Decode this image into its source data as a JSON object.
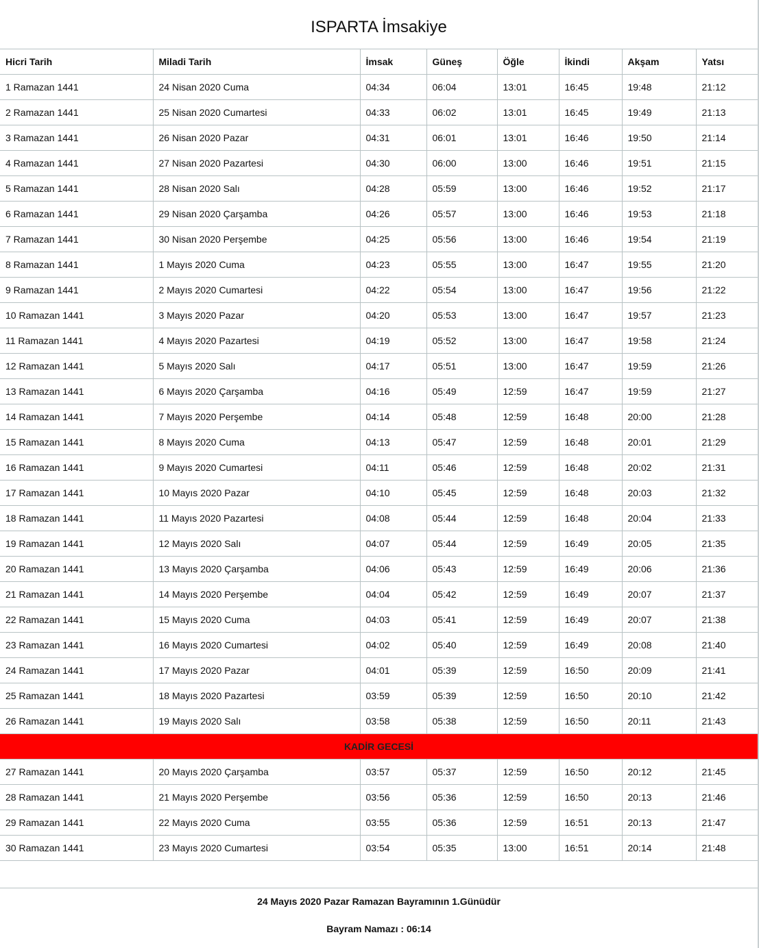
{
  "title": "ISPARTA İmsakiye",
  "headers": [
    "Hicri Tarih",
    "Miladi Tarih",
    "İmsak",
    "Güneş",
    "Öğle",
    "İkindi",
    "Akşam",
    "Yatsı"
  ],
  "rows_before": [
    [
      "1 Ramazan 1441",
      "24 Nisan 2020 Cuma",
      "04:34",
      "06:04",
      "13:01",
      "16:45",
      "19:48",
      "21:12"
    ],
    [
      "2 Ramazan 1441",
      "25 Nisan 2020 Cumartesi",
      "04:33",
      "06:02",
      "13:01",
      "16:45",
      "19:49",
      "21:13"
    ],
    [
      "3 Ramazan 1441",
      "26 Nisan 2020 Pazar",
      "04:31",
      "06:01",
      "13:01",
      "16:46",
      "19:50",
      "21:14"
    ],
    [
      "4 Ramazan 1441",
      "27 Nisan 2020 Pazartesi",
      "04:30",
      "06:00",
      "13:00",
      "16:46",
      "19:51",
      "21:15"
    ],
    [
      "5 Ramazan 1441",
      "28 Nisan 2020 Salı",
      "04:28",
      "05:59",
      "13:00",
      "16:46",
      "19:52",
      "21:17"
    ],
    [
      "6 Ramazan 1441",
      "29 Nisan 2020 Çarşamba",
      "04:26",
      "05:57",
      "13:00",
      "16:46",
      "19:53",
      "21:18"
    ],
    [
      "7 Ramazan 1441",
      "30 Nisan 2020 Perşembe",
      "04:25",
      "05:56",
      "13:00",
      "16:46",
      "19:54",
      "21:19"
    ],
    [
      "8 Ramazan 1441",
      "1 Mayıs 2020 Cuma",
      "04:23",
      "05:55",
      "13:00",
      "16:47",
      "19:55",
      "21:20"
    ],
    [
      "9 Ramazan 1441",
      "2 Mayıs 2020 Cumartesi",
      "04:22",
      "05:54",
      "13:00",
      "16:47",
      "19:56",
      "21:22"
    ],
    [
      "10 Ramazan 1441",
      "3 Mayıs 2020 Pazar",
      "04:20",
      "05:53",
      "13:00",
      "16:47",
      "19:57",
      "21:23"
    ],
    [
      "11 Ramazan 1441",
      "4 Mayıs 2020 Pazartesi",
      "04:19",
      "05:52",
      "13:00",
      "16:47",
      "19:58",
      "21:24"
    ],
    [
      "12 Ramazan 1441",
      "5 Mayıs 2020 Salı",
      "04:17",
      "05:51",
      "13:00",
      "16:47",
      "19:59",
      "21:26"
    ],
    [
      "13 Ramazan 1441",
      "6 Mayıs 2020 Çarşamba",
      "04:16",
      "05:49",
      "12:59",
      "16:47",
      "19:59",
      "21:27"
    ],
    [
      "14 Ramazan 1441",
      "7 Mayıs 2020 Perşembe",
      "04:14",
      "05:48",
      "12:59",
      "16:48",
      "20:00",
      "21:28"
    ],
    [
      "15 Ramazan 1441",
      "8 Mayıs 2020 Cuma",
      "04:13",
      "05:47",
      "12:59",
      "16:48",
      "20:01",
      "21:29"
    ],
    [
      "16 Ramazan 1441",
      "9 Mayıs 2020 Cumartesi",
      "04:11",
      "05:46",
      "12:59",
      "16:48",
      "20:02",
      "21:31"
    ],
    [
      "17 Ramazan 1441",
      "10 Mayıs 2020 Pazar",
      "04:10",
      "05:45",
      "12:59",
      "16:48",
      "20:03",
      "21:32"
    ],
    [
      "18 Ramazan 1441",
      "11 Mayıs 2020 Pazartesi",
      "04:08",
      "05:44",
      "12:59",
      "16:48",
      "20:04",
      "21:33"
    ],
    [
      "19 Ramazan 1441",
      "12 Mayıs 2020 Salı",
      "04:07",
      "05:44",
      "12:59",
      "16:49",
      "20:05",
      "21:35"
    ],
    [
      "20 Ramazan 1441",
      "13 Mayıs 2020 Çarşamba",
      "04:06",
      "05:43",
      "12:59",
      "16:49",
      "20:06",
      "21:36"
    ],
    [
      "21 Ramazan 1441",
      "14 Mayıs 2020 Perşembe",
      "04:04",
      "05:42",
      "12:59",
      "16:49",
      "20:07",
      "21:37"
    ],
    [
      "22 Ramazan 1441",
      "15 Mayıs 2020 Cuma",
      "04:03",
      "05:41",
      "12:59",
      "16:49",
      "20:07",
      "21:38"
    ],
    [
      "23 Ramazan 1441",
      "16 Mayıs 2020 Cumartesi",
      "04:02",
      "05:40",
      "12:59",
      "16:49",
      "20:08",
      "21:40"
    ],
    [
      "24 Ramazan 1441",
      "17 Mayıs 2020 Pazar",
      "04:01",
      "05:39",
      "12:59",
      "16:50",
      "20:09",
      "21:41"
    ],
    [
      "25 Ramazan 1441",
      "18 Mayıs 2020 Pazartesi",
      "03:59",
      "05:39",
      "12:59",
      "16:50",
      "20:10",
      "21:42"
    ],
    [
      "26 Ramazan 1441",
      "19 Mayıs 2020 Salı",
      "03:58",
      "05:38",
      "12:59",
      "16:50",
      "20:11",
      "21:43"
    ]
  ],
  "kadir_label": "KADİR GECESİ",
  "kadir_color": "#ff0000",
  "rows_after": [
    [
      "27 Ramazan 1441",
      "20 Mayıs 2020 Çarşamba",
      "03:57",
      "05:37",
      "12:59",
      "16:50",
      "20:12",
      "21:45"
    ],
    [
      "28 Ramazan 1441",
      "21 Mayıs 2020 Perşembe",
      "03:56",
      "05:36",
      "12:59",
      "16:50",
      "20:13",
      "21:46"
    ],
    [
      "29 Ramazan 1441",
      "22 Mayıs 2020 Cuma",
      "03:55",
      "05:36",
      "12:59",
      "16:51",
      "20:13",
      "21:47"
    ],
    [
      "30 Ramazan 1441",
      "23 Mayıs 2020 Cumartesi",
      "03:54",
      "05:35",
      "13:00",
      "16:51",
      "20:14",
      "21:48"
    ]
  ],
  "footer": {
    "bayram_note": "24 Mayıs 2020 Pazar Ramazan Bayramının 1.Günüdür",
    "bayram_namazi": "Bayram Namazı : 06:14"
  }
}
